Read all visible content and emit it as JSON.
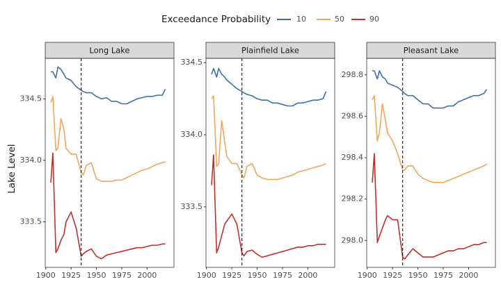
{
  "legend_title": "Exceedance Probability",
  "y_label": "Lake Level",
  "chart_data": [
    {
      "type": "line",
      "title": "Long Lake",
      "x": [
        1905,
        1907,
        1910,
        1912,
        1915,
        1918,
        1920,
        1925,
        1930,
        1935,
        1937,
        1940,
        1945,
        1950,
        1955,
        1960,
        1965,
        1970,
        1975,
        1980,
        1985,
        1990,
        1995,
        2000,
        2005,
        2010,
        2015,
        2018
      ],
      "series": [
        {
          "name": "10",
          "color": "#3d6fa8",
          "values": [
            334.72,
            334.72,
            334.67,
            334.76,
            334.74,
            334.7,
            334.67,
            334.65,
            334.6,
            334.57,
            334.56,
            334.55,
            334.55,
            334.52,
            334.5,
            334.51,
            334.48,
            334.48,
            334.46,
            334.46,
            334.48,
            334.5,
            334.51,
            334.52,
            334.52,
            334.53,
            334.53,
            334.58
          ]
        },
        {
          "name": "50",
          "color": "#f2a65a",
          "values": [
            334.47,
            334.52,
            334.08,
            334.1,
            334.34,
            334.25,
            334.1,
            334.05,
            334.05,
            333.9,
            333.88,
            333.96,
            333.98,
            333.85,
            333.83,
            333.83,
            333.83,
            333.84,
            333.84,
            333.86,
            333.88,
            333.9,
            333.92,
            333.93,
            333.95,
            333.97,
            333.98,
            333.99
          ]
        },
        {
          "name": "90",
          "color": "#c0302b",
          "values": [
            333.82,
            334.06,
            333.25,
            333.28,
            333.35,
            333.4,
            333.5,
            333.58,
            333.45,
            333.22,
            333.24,
            333.26,
            333.28,
            333.22,
            333.2,
            333.23,
            333.24,
            333.25,
            333.26,
            333.27,
            333.28,
            333.29,
            333.29,
            333.3,
            333.31,
            333.31,
            333.32,
            333.32
          ]
        }
      ],
      "xlim": [
        1899.5,
        2026.5
      ],
      "xticks": [
        1900,
        1925,
        1950,
        1975,
        2000
      ],
      "ylim": [
        333.13,
        334.83
      ],
      "yticks": [
        333.5,
        {
          "value": 334,
          "label": "334.0"
        },
        334.5
      ],
      "vline": 1935
    },
    {
      "type": "line",
      "title": "Plainfield Lake",
      "x": [
        1905,
        1907,
        1910,
        1912,
        1915,
        1918,
        1920,
        1925,
        1930,
        1935,
        1937,
        1940,
        1945,
        1950,
        1955,
        1960,
        1965,
        1970,
        1975,
        1980,
        1985,
        1990,
        1995,
        2000,
        2005,
        2010,
        2015,
        2018
      ],
      "series": [
        {
          "name": "10",
          "color": "#3d6fa8",
          "values": [
            334.42,
            334.46,
            334.4,
            334.46,
            334.42,
            334.4,
            334.38,
            334.35,
            334.32,
            334.3,
            334.29,
            334.28,
            334.27,
            334.25,
            334.24,
            334.24,
            334.22,
            334.22,
            334.21,
            334.2,
            334.2,
            334.22,
            334.22,
            334.23,
            334.24,
            334.24,
            334.25,
            334.3
          ]
        },
        {
          "name": "50",
          "color": "#f2a65a",
          "values": [
            334.25,
            334.27,
            333.78,
            333.8,
            334.1,
            333.95,
            333.85,
            333.8,
            333.8,
            333.72,
            333.7,
            333.78,
            333.8,
            333.72,
            333.7,
            333.69,
            333.69,
            333.69,
            333.7,
            333.71,
            333.72,
            333.74,
            333.75,
            333.76,
            333.77,
            333.78,
            333.79,
            333.8
          ]
        },
        {
          "name": "90",
          "color": "#c0302b",
          "values": [
            333.65,
            333.86,
            333.18,
            333.22,
            333.3,
            333.38,
            333.4,
            333.45,
            333.38,
            333.18,
            333.16,
            333.19,
            333.2,
            333.17,
            333.15,
            333.16,
            333.17,
            333.18,
            333.19,
            333.2,
            333.21,
            333.22,
            333.22,
            333.23,
            333.23,
            333.24,
            333.24,
            333.24
          ]
        }
      ],
      "xlim": [
        1899.5,
        2026.5
      ],
      "xticks": [
        1900,
        1925,
        1950,
        1975,
        2000
      ],
      "ylim": [
        333.08,
        334.53
      ],
      "yticks": [
        333.5,
        {
          "value": 334,
          "label": "334.0"
        },
        334.5
      ],
      "vline": 1935
    },
    {
      "type": "line",
      "title": "Pleasant Lake",
      "x": [
        1905,
        1907,
        1910,
        1912,
        1915,
        1918,
        1920,
        1925,
        1930,
        1935,
        1937,
        1940,
        1945,
        1950,
        1955,
        1960,
        1965,
        1970,
        1975,
        1980,
        1985,
        1990,
        1995,
        2000,
        2005,
        2010,
        2015,
        2018
      ],
      "series": [
        {
          "name": "10",
          "color": "#3d6fa8",
          "values": [
            298.82,
            298.82,
            298.78,
            298.82,
            298.79,
            298.78,
            298.76,
            298.75,
            298.74,
            298.72,
            298.71,
            298.7,
            298.7,
            298.68,
            298.66,
            298.66,
            298.64,
            298.64,
            298.64,
            298.65,
            298.65,
            298.67,
            298.68,
            298.69,
            298.7,
            298.7,
            298.71,
            298.73
          ]
        },
        {
          "name": "50",
          "color": "#f2a65a",
          "values": [
            298.68,
            298.7,
            298.48,
            298.52,
            298.66,
            298.58,
            298.52,
            298.48,
            298.42,
            298.34,
            298.34,
            298.36,
            298.36,
            298.32,
            298.3,
            298.29,
            298.28,
            298.28,
            298.28,
            298.29,
            298.3,
            298.31,
            298.32,
            298.33,
            298.34,
            298.35,
            298.36,
            298.37
          ]
        },
        {
          "name": "90",
          "color": "#c0302b",
          "values": [
            298.28,
            298.42,
            297.99,
            298.02,
            298.06,
            298.1,
            298.12,
            298.1,
            298.1,
            297.92,
            297.91,
            297.93,
            297.96,
            297.94,
            297.92,
            297.92,
            297.92,
            297.93,
            297.94,
            297.95,
            297.95,
            297.96,
            297.96,
            297.97,
            297.98,
            297.98,
            297.99,
            297.99
          ]
        }
      ],
      "xlim": [
        1899.5,
        2026.5
      ],
      "xticks": [
        1900,
        1925,
        1950,
        1975,
        2000
      ],
      "ylim": [
        297.87,
        298.88
      ],
      "yticks": [
        {
          "value": 298,
          "label": "298.0"
        },
        298.2,
        298.4,
        298.6,
        298.8
      ],
      "vline": 1935
    }
  ]
}
